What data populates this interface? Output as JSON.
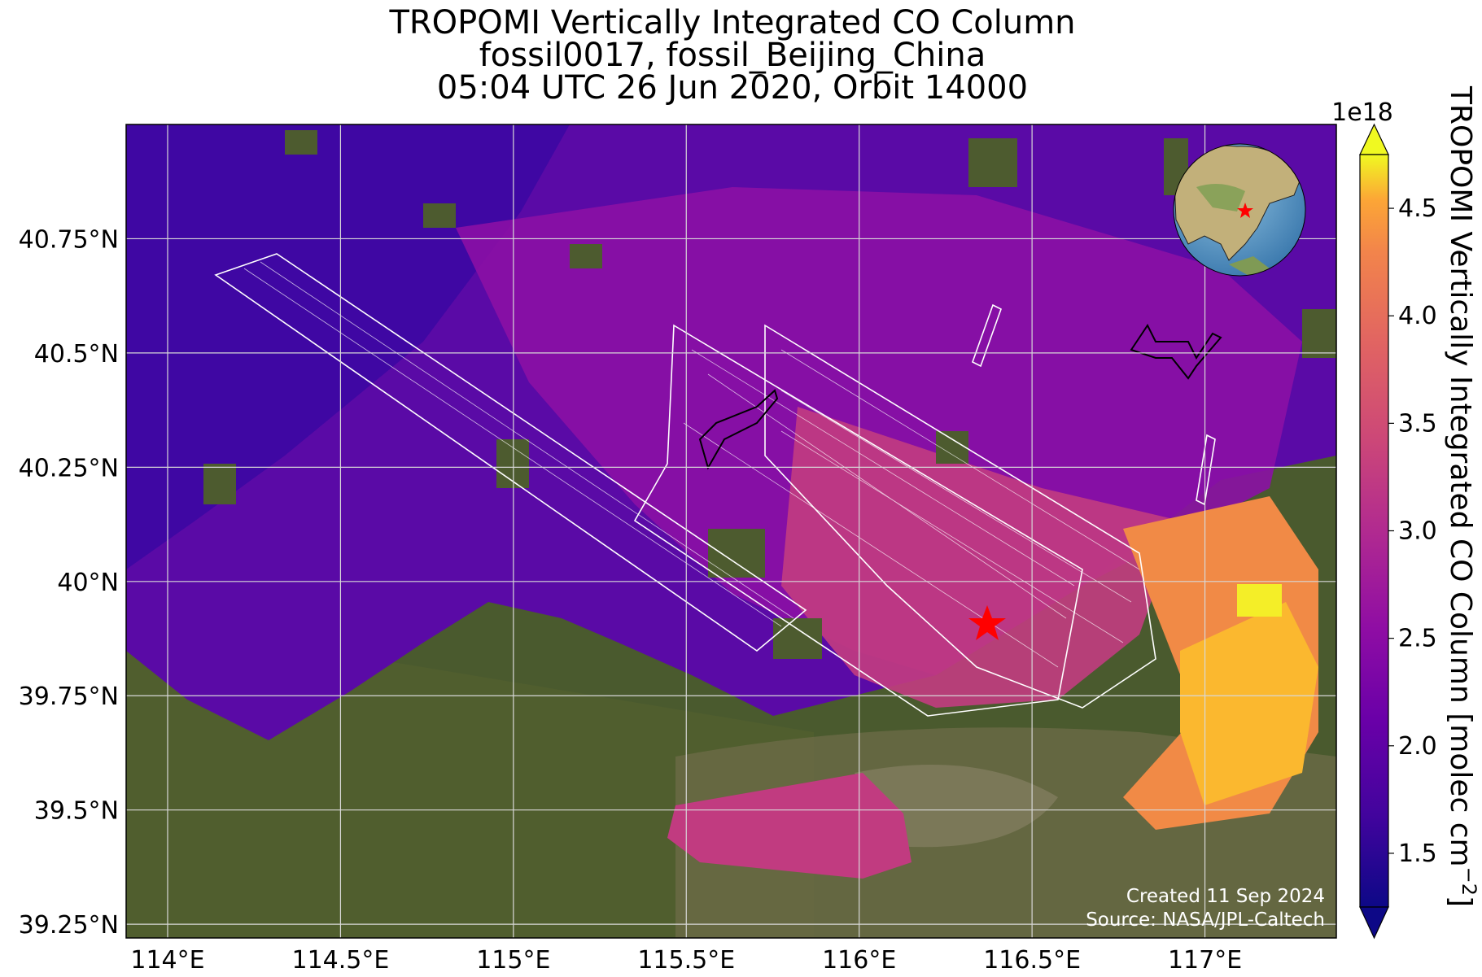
{
  "title": {
    "line1": "TROPOMI Vertically Integrated CO Column",
    "line2": "fossil0017, fossil_Beijing_China",
    "line3": "05:04 UTC 26 Jun 2020, Orbit 14000"
  },
  "map": {
    "lon_range": [
      113.88,
      117.38
    ],
    "lat_range": [
      39.22,
      41.0
    ],
    "lon_ticks": [
      {
        "value": 114.0,
        "label": "114°E"
      },
      {
        "value": 114.5,
        "label": "114.5°E"
      },
      {
        "value": 115.0,
        "label": "115°E"
      },
      {
        "value": 115.5,
        "label": "115.5°E"
      },
      {
        "value": 116.0,
        "label": "116°E"
      },
      {
        "value": 116.5,
        "label": "116.5°E"
      },
      {
        "value": 117.0,
        "label": "117°E"
      }
    ],
    "lat_ticks": [
      {
        "value": 40.75,
        "label": "40.75°N"
      },
      {
        "value": 40.5,
        "label": "40.5°N"
      },
      {
        "value": 40.25,
        "label": "40.25°N"
      },
      {
        "value": 40.0,
        "label": "40°N"
      },
      {
        "value": 39.75,
        "label": "39.75°N"
      },
      {
        "value": 39.5,
        "label": "39.5°N"
      },
      {
        "value": 39.25,
        "label": "39.25°N"
      }
    ],
    "gridlines": true,
    "basemap": "satellite imagery",
    "target_marker": {
      "lon": 116.38,
      "lat": 39.9,
      "symbol": "red star"
    },
    "footer": {
      "created": "Created 11 Sep 2024",
      "source": "Source: NASA/JPL-Caltech"
    }
  },
  "colorbar": {
    "label": "TROPOMI Vertically Integrated CO Column [molec cm⁻²]",
    "label_main": "TROPOMI Vertically Integrated CO Column [molec cm",
    "label_exp": "−2",
    "label_end": "]",
    "multiplier": "1e18",
    "colormap": "plasma",
    "range": [
      1.25,
      4.75
    ],
    "ticks": [
      {
        "value": 1.5,
        "label": "1.5"
      },
      {
        "value": 2.0,
        "label": "2.0"
      },
      {
        "value": 2.5,
        "label": "2.5"
      },
      {
        "value": 3.0,
        "label": "3.0"
      },
      {
        "value": 3.5,
        "label": "3.5"
      },
      {
        "value": 4.0,
        "label": "4.0"
      },
      {
        "value": 4.5,
        "label": "4.5"
      }
    ],
    "extend": "both"
  },
  "inset_globe": {
    "marker": "red star",
    "region": "East Asia"
  }
}
